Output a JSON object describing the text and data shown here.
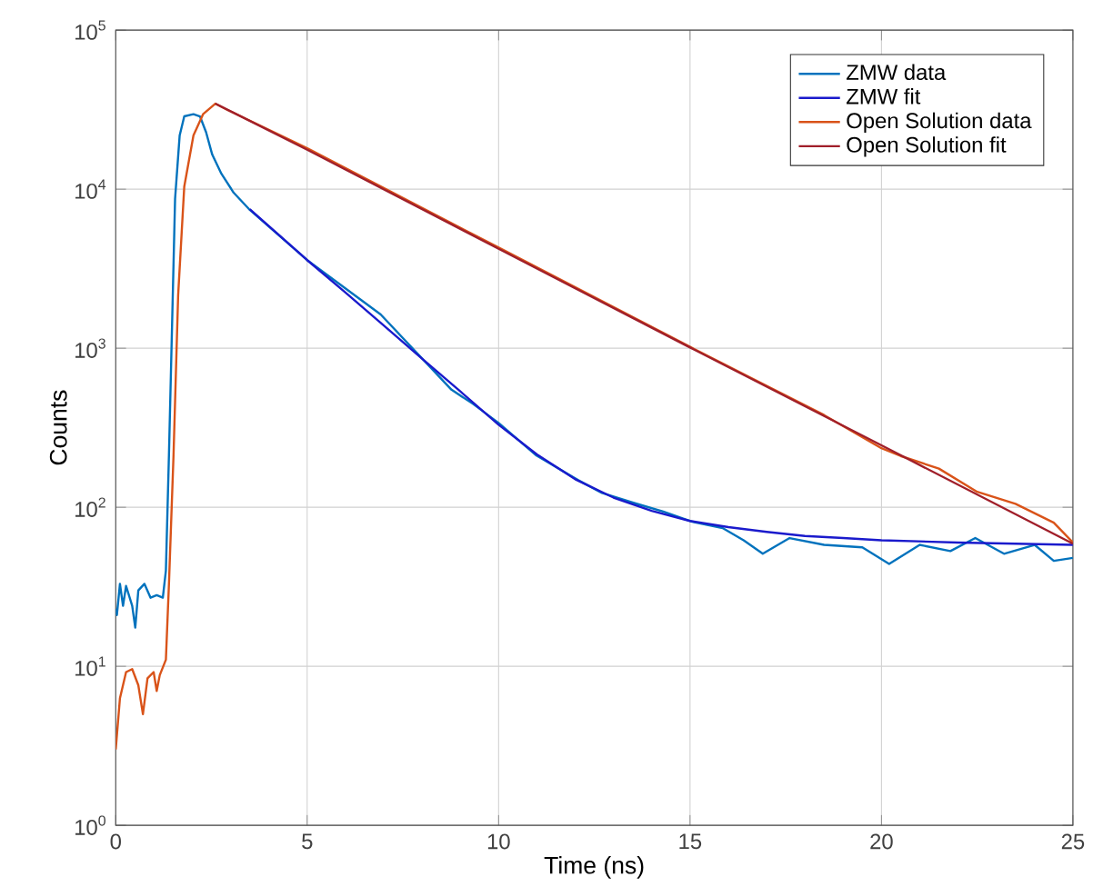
{
  "chart_data": {
    "type": "line",
    "xlabel": "Time (ns)",
    "ylabel": "Counts",
    "xlim": [
      0,
      25
    ],
    "ylim": [
      1,
      100000
    ],
    "log": "y",
    "grid": true,
    "legend": "top right",
    "marker": "none",
    "line_style": "solid",
    "xticks": [
      0,
      5,
      10,
      15,
      20,
      25
    ],
    "yticks": [
      {
        "value": 1,
        "label": "10$^{0}$"
      },
      {
        "value": 10,
        "label": "10$^{1}$"
      },
      {
        "value": 100,
        "label": "10$^{2}$"
      },
      {
        "value": 1000,
        "label": "10$^{3}$"
      },
      {
        "value": 10000,
        "label": "10$^{4}$"
      },
      {
        "value": 100000,
        "label": "10$^{5}$"
      }
    ],
    "series": [
      {
        "name": "ZMW data",
        "color": "#0072bd",
        "x": [
          0,
          0.03,
          0.11,
          0.19,
          0.27,
          0.43,
          0.51,
          0.59,
          0.75,
          0.91,
          1.07,
          1.23,
          1.31,
          1.39,
          1.47,
          1.55,
          1.67,
          1.79,
          2.03,
          2.2,
          2.36,
          2.52,
          2.76,
          3.08,
          3.48,
          5,
          6.92,
          8.77,
          9.33,
          10,
          10.97,
          12.08,
          12.7,
          13.5,
          14.3,
          15.06,
          15.85,
          16.4,
          16.9,
          17.6,
          18.5,
          19.5,
          20.2,
          21.0,
          21.8,
          22.45,
          23.2,
          24.0,
          24.5,
          25
        ],
        "values": [
          23,
          21,
          33,
          24,
          32,
          24,
          17.5,
          30,
          33,
          27,
          28,
          27,
          40,
          214,
          1350,
          8700,
          21800,
          28700,
          29600,
          28700,
          22800,
          16500,
          12500,
          9500,
          7500,
          3580,
          1630,
          548,
          447,
          339,
          213,
          148,
          123,
          107,
          94,
          81,
          74,
          62,
          51,
          64,
          58,
          56,
          44,
          58,
          53,
          64,
          51,
          58,
          46,
          48
        ]
      },
      {
        "name": "ZMW fit",
        "color": "#1a1acc",
        "x": [
          3.5,
          5,
          6,
          7,
          8,
          9,
          10,
          11,
          12,
          13,
          14,
          15,
          16,
          17,
          18,
          19,
          20,
          22,
          25
        ],
        "values": [
          7500,
          3580,
          2240,
          1390,
          860,
          535,
          330,
          215,
          150,
          115,
          95,
          82,
          75,
          70,
          66,
          64,
          62,
          60,
          58
        ]
      },
      {
        "name": "Open Solution data",
        "color": "#d95319",
        "x": [
          0,
          0.11,
          0.27,
          0.43,
          0.59,
          0.71,
          0.83,
          0.99,
          1.07,
          1.15,
          1.31,
          1.39,
          1.51,
          1.63,
          1.79,
          2.03,
          2.28,
          2.6,
          2.92,
          5,
          9.33,
          10,
          15,
          17,
          18.5,
          20,
          20.5,
          21.5,
          22.5,
          23.5,
          24.5,
          25
        ],
        "values": [
          3,
          6.3,
          9.2,
          9.6,
          7.6,
          5,
          8.4,
          9.2,
          7,
          8.8,
          11,
          33,
          214,
          2150,
          10400,
          21800,
          29600,
          34500,
          31500,
          18100,
          5200,
          4300,
          1020,
          580,
          380,
          235,
          210,
          175,
          125,
          105,
          80,
          60
        ]
      },
      {
        "name": "Open Solution fit",
        "color": "#a01f2a",
        "x": [
          2.6,
          5,
          10,
          15,
          20,
          25
        ],
        "values": [
          34500,
          17700,
          4220,
          1010,
          245,
          59
        ]
      }
    ]
  }
}
